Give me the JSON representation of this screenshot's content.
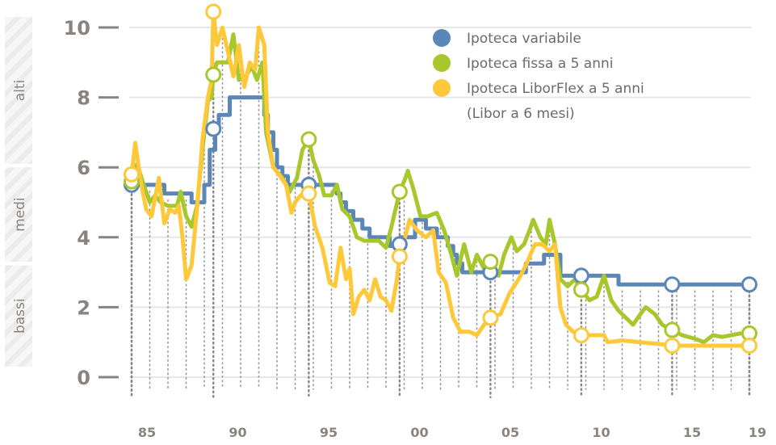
{
  "chart_data": {
    "type": "line",
    "title": "",
    "xlabel": "",
    "ylabel": "",
    "ylim": [
      0,
      10
    ],
    "xlim": [
      1985,
      2019
    ],
    "yticks": [
      "0",
      "2",
      "4",
      "6",
      "8",
      "10"
    ],
    "xticks": [
      {
        "year": 1985,
        "label": "85"
      },
      {
        "year": 1990,
        "label": "90"
      },
      {
        "year": 1995,
        "label": "95"
      },
      {
        "year": 2000,
        "label": "00"
      },
      {
        "year": 2005,
        "label": "05"
      },
      {
        "year": 2010,
        "label": "10"
      },
      {
        "year": 2015,
        "label": "15"
      },
      {
        "year": 2019,
        "label": "19"
      }
    ],
    "bands": [
      {
        "label": "alti",
        "from": 6.1,
        "to": 10.3
      },
      {
        "label": "medi",
        "from": 3.3,
        "to": 6.0
      },
      {
        "label": "bassi",
        "from": 0.3,
        "to": 3.2
      }
    ],
    "legend_position": "top-right",
    "legend_note": "(Libor a 6 mesi)",
    "marker_years": [
      1985,
      1989.5,
      1994.75,
      1999.75,
      2004.75,
      2009.75,
      2014.75,
      2019
    ],
    "series": [
      {
        "name": "Ipoteca variabile",
        "color": "#5b87b8",
        "step": true,
        "points": [
          [
            1985,
            5.5
          ],
          [
            1986.8,
            5.25
          ],
          [
            1988.3,
            5.0
          ],
          [
            1989.0,
            5.5
          ],
          [
            1989.3,
            6.5
          ],
          [
            1989.6,
            7.1
          ],
          [
            1989.8,
            7.5
          ],
          [
            1990.4,
            8.0
          ],
          [
            1992.3,
            7.5
          ],
          [
            1992.5,
            7.0
          ],
          [
            1992.8,
            6.5
          ],
          [
            1993.0,
            6.0
          ],
          [
            1993.3,
            5.75
          ],
          [
            1993.6,
            5.5
          ],
          [
            1996.3,
            5.25
          ],
          [
            1996.5,
            5.0
          ],
          [
            1996.8,
            4.75
          ],
          [
            1997.2,
            4.5
          ],
          [
            1997.7,
            4.25
          ],
          [
            1998.1,
            4.0
          ],
          [
            1999.2,
            3.75
          ],
          [
            1999.8,
            4.0
          ],
          [
            2000.6,
            4.5
          ],
          [
            2001.2,
            4.25
          ],
          [
            2001.8,
            4.0
          ],
          [
            2002.4,
            3.75
          ],
          [
            2002.7,
            3.5
          ],
          [
            2002.9,
            3.25
          ],
          [
            2003.2,
            3.0
          ],
          [
            2006.7,
            3.25
          ],
          [
            2007.7,
            3.5
          ],
          [
            2008.6,
            2.9
          ],
          [
            2011.8,
            2.65
          ],
          [
            2019,
            2.65
          ]
        ],
        "markers": [
          5.5,
          7.1,
          5.5,
          3.8,
          3.0,
          2.9,
          2.65,
          2.65
        ]
      },
      {
        "name": "Ipoteca fissa a 5 anni",
        "color": "#a8c72d",
        "step": false,
        "points": [
          [
            1985,
            5.6
          ],
          [
            1985.3,
            6.1
          ],
          [
            1985.6,
            5.6
          ],
          [
            1986,
            5.0
          ],
          [
            1986.3,
            5.2
          ],
          [
            1986.6,
            5.0
          ],
          [
            1987,
            4.9
          ],
          [
            1987.5,
            4.9
          ],
          [
            1987.7,
            5.3
          ],
          [
            1988.0,
            4.6
          ],
          [
            1988.3,
            4.3
          ],
          [
            1988.6,
            4.9
          ],
          [
            1988.9,
            6.5
          ],
          [
            1989.2,
            7.9
          ],
          [
            1989.4,
            8.0
          ],
          [
            1989.5,
            8.65
          ],
          [
            1989.7,
            9.0
          ],
          [
            1990.3,
            9.0
          ],
          [
            1990.6,
            9.8
          ],
          [
            1990.9,
            8.5
          ],
          [
            1991.3,
            8.6
          ],
          [
            1991.6,
            8.9
          ],
          [
            1991.9,
            8.5
          ],
          [
            1992.2,
            9.0
          ],
          [
            1992.4,
            7.0
          ],
          [
            1992.8,
            6.0
          ],
          [
            1993.3,
            5.7
          ],
          [
            1993.7,
            5.3
          ],
          [
            1994.1,
            5.7
          ],
          [
            1994.4,
            6.5
          ],
          [
            1994.75,
            6.8
          ],
          [
            1995.0,
            6.2
          ],
          [
            1995.3,
            5.8
          ],
          [
            1995.6,
            5.2
          ],
          [
            1996.0,
            5.2
          ],
          [
            1996.3,
            5.5
          ],
          [
            1996.6,
            4.8
          ],
          [
            1997.0,
            4.6
          ],
          [
            1997.4,
            4.0
          ],
          [
            1997.8,
            3.9
          ],
          [
            1998.6,
            3.9
          ],
          [
            1999.0,
            3.7
          ],
          [
            1999.3,
            4.3
          ],
          [
            1999.75,
            5.3
          ],
          [
            2000.0,
            5.6
          ],
          [
            2000.2,
            5.9
          ],
          [
            2000.5,
            5.4
          ],
          [
            2000.9,
            4.6
          ],
          [
            2001.3,
            4.6
          ],
          [
            2001.8,
            4.7
          ],
          [
            2002.2,
            4.2
          ],
          [
            2002.6,
            3.5
          ],
          [
            2002.9,
            2.9
          ],
          [
            2003.3,
            3.8
          ],
          [
            2003.7,
            3.0
          ],
          [
            2004.0,
            3.5
          ],
          [
            2004.4,
            3.1
          ],
          [
            2004.75,
            3.3
          ],
          [
            2005.2,
            2.9
          ],
          [
            2005.5,
            3.5
          ],
          [
            2005.9,
            4.0
          ],
          [
            2006.2,
            3.6
          ],
          [
            2006.6,
            3.8
          ],
          [
            2006.9,
            4.2
          ],
          [
            2007.1,
            4.5
          ],
          [
            2007.5,
            4.0
          ],
          [
            2007.8,
            3.8
          ],
          [
            2008.0,
            4.5
          ],
          [
            2008.3,
            3.8
          ],
          [
            2008.6,
            2.8
          ],
          [
            2009.0,
            2.6
          ],
          [
            2009.4,
            2.8
          ],
          [
            2009.75,
            2.5
          ],
          [
            2010.2,
            2.2
          ],
          [
            2010.6,
            2.3
          ],
          [
            2011.0,
            2.9
          ],
          [
            2011.4,
            2.2
          ],
          [
            2011.8,
            1.9
          ],
          [
            2012.2,
            1.7
          ],
          [
            2012.6,
            1.5
          ],
          [
            2013.0,
            1.8
          ],
          [
            2013.3,
            2.0
          ],
          [
            2013.8,
            1.8
          ],
          [
            2014.2,
            1.5
          ],
          [
            2014.75,
            1.35
          ],
          [
            2015.3,
            1.2
          ],
          [
            2016.0,
            1.1
          ],
          [
            2016.5,
            1.0
          ],
          [
            2017.0,
            1.2
          ],
          [
            2017.5,
            1.15
          ],
          [
            2018.0,
            1.2
          ],
          [
            2018.5,
            1.25
          ],
          [
            2019,
            1.25
          ]
        ],
        "markers": [
          5.6,
          8.65,
          6.8,
          5.3,
          3.3,
          2.5,
          1.35,
          1.25
        ]
      },
      {
        "name": "Ipoteca LiborFlex a 5 anni",
        "color": "#fdc83a",
        "step": false,
        "points": [
          [
            1985,
            5.8
          ],
          [
            1985.2,
            6.7
          ],
          [
            1985.5,
            5.6
          ],
          [
            1985.8,
            4.8
          ],
          [
            1986.1,
            4.6
          ],
          [
            1986.5,
            5.7
          ],
          [
            1986.8,
            4.4
          ],
          [
            1987.1,
            4.8
          ],
          [
            1987.4,
            4.7
          ],
          [
            1987.6,
            4.9
          ],
          [
            1987.8,
            4.0
          ],
          [
            1988.0,
            2.8
          ],
          [
            1988.3,
            3.2
          ],
          [
            1988.6,
            4.8
          ],
          [
            1988.9,
            6.8
          ],
          [
            1989.2,
            8.0
          ],
          [
            1989.4,
            8.5
          ],
          [
            1989.5,
            10.45
          ],
          [
            1989.7,
            9.5
          ],
          [
            1990.0,
            10.0
          ],
          [
            1990.3,
            9.3
          ],
          [
            1990.6,
            8.6
          ],
          [
            1990.9,
            9.5
          ],
          [
            1991.2,
            8.3
          ],
          [
            1991.5,
            9.0
          ],
          [
            1991.8,
            8.8
          ],
          [
            1992.0,
            10.0
          ],
          [
            1992.3,
            9.5
          ],
          [
            1992.5,
            7.0
          ],
          [
            1992.8,
            6.0
          ],
          [
            1993.1,
            5.8
          ],
          [
            1993.5,
            5.5
          ],
          [
            1993.8,
            4.7
          ],
          [
            1994.0,
            5.0
          ],
          [
            1994.3,
            5.2
          ],
          [
            1994.75,
            5.25
          ],
          [
            1995.1,
            4.3
          ],
          [
            1995.5,
            3.7
          ],
          [
            1995.9,
            2.7
          ],
          [
            1996.2,
            2.6
          ],
          [
            1996.5,
            3.7
          ],
          [
            1996.8,
            2.8
          ],
          [
            1997.0,
            3.1
          ],
          [
            1997.2,
            1.8
          ],
          [
            1997.5,
            2.3
          ],
          [
            1997.8,
            2.5
          ],
          [
            1998.1,
            2.2
          ],
          [
            1998.4,
            2.8
          ],
          [
            1998.7,
            2.3
          ],
          [
            1999.0,
            2.2
          ],
          [
            1999.3,
            1.9
          ],
          [
            1999.6,
            2.8
          ],
          [
            1999.75,
            3.45
          ],
          [
            2000.0,
            3.9
          ],
          [
            2000.3,
            4.5
          ],
          [
            2000.7,
            4.2
          ],
          [
            2001.2,
            4.0
          ],
          [
            2001.6,
            4.2
          ],
          [
            2001.9,
            3.0
          ],
          [
            2002.3,
            2.7
          ],
          [
            2002.7,
            1.7
          ],
          [
            2003.1,
            1.3
          ],
          [
            2003.6,
            1.3
          ],
          [
            2004.0,
            1.2
          ],
          [
            2004.4,
            1.5
          ],
          [
            2004.75,
            1.7
          ],
          [
            2005.3,
            1.8
          ],
          [
            2005.8,
            2.4
          ],
          [
            2006.3,
            2.8
          ],
          [
            2006.7,
            3.2
          ],
          [
            2007.2,
            3.8
          ],
          [
            2007.6,
            3.8
          ],
          [
            2008.0,
            3.6
          ],
          [
            2008.3,
            3.8
          ],
          [
            2008.6,
            2.0
          ],
          [
            2008.9,
            1.5
          ],
          [
            2009.3,
            1.3
          ],
          [
            2009.75,
            1.2
          ],
          [
            2010.5,
            1.2
          ],
          [
            2011.0,
            1.2
          ],
          [
            2011.2,
            1.0
          ],
          [
            2012.0,
            1.05
          ],
          [
            2013.0,
            1.0
          ],
          [
            2014.0,
            0.95
          ],
          [
            2014.75,
            0.9
          ],
          [
            2019,
            0.9
          ]
        ],
        "markers": [
          5.8,
          10.45,
          5.25,
          3.45,
          1.7,
          1.2,
          0.9,
          0.9
        ]
      }
    ]
  }
}
